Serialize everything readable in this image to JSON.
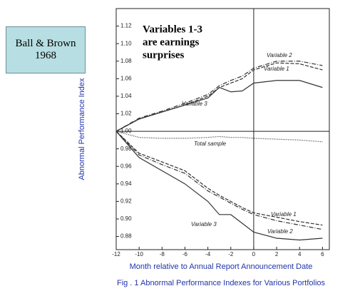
{
  "header": {
    "lines": [
      "Ball & Brown",
      "1968"
    ]
  },
  "chart_data": {
    "type": "line",
    "annotation": [
      "Variables 1-3",
      "are earnings",
      "surprises"
    ],
    "y_label": "Abnormal Performance Index",
    "x_label": "Month relative to Annual Report Announcement Date",
    "caption": "Fig . 1 Abnormal Performance Indexes for Various Portfolios",
    "x": [
      -12,
      -10,
      -8,
      -6,
      -4,
      -3,
      -2,
      -1,
      0,
      2,
      4,
      6
    ],
    "series": [
      {
        "name": "Variable 2",
        "color": "#333",
        "style": "dashdot",
        "values": [
          1.0,
          1.015,
          1.023,
          1.032,
          1.042,
          1.052,
          1.058,
          1.063,
          1.072,
          1.08,
          1.08,
          1.075
        ]
      },
      {
        "name": "Variable 1",
        "color": "#333",
        "style": "dashed",
        "values": [
          1.0,
          1.014,
          1.022,
          1.03,
          1.04,
          1.05,
          1.055,
          1.06,
          1.07,
          1.078,
          1.077,
          1.07
        ]
      },
      {
        "name": "Variable 3",
        "color": "#333",
        "style": "solid",
        "values": [
          1.0,
          1.014,
          1.022,
          1.03,
          1.038,
          1.05,
          1.045,
          1.046,
          1.055,
          1.058,
          1.058,
          1.05
        ]
      },
      {
        "name": "Total sample",
        "color": "#333",
        "style": "dotted",
        "values": [
          1.0,
          0.993,
          0.992,
          0.992,
          0.993,
          0.994,
          0.993,
          0.993,
          0.992,
          0.991,
          0.99,
          0.988
        ]
      },
      {
        "name": "Variable 1",
        "color": "#333",
        "style": "dashed",
        "values": [
          1.0,
          0.975,
          0.965,
          0.955,
          0.935,
          0.927,
          0.92,
          0.913,
          0.907,
          0.902,
          0.897,
          0.893
        ]
      },
      {
        "name": "Variable 2",
        "color": "#333",
        "style": "dashdot",
        "values": [
          1.0,
          0.973,
          0.962,
          0.952,
          0.932,
          0.925,
          0.918,
          0.911,
          0.905,
          0.898,
          0.893,
          0.888
        ]
      },
      {
        "name": "Variable 3",
        "color": "#333",
        "style": "solid",
        "values": [
          1.0,
          0.97,
          0.955,
          0.94,
          0.92,
          0.905,
          0.905,
          0.895,
          0.885,
          0.878,
          0.876,
          0.878
        ]
      }
    ],
    "xlim": [
      -12,
      6.6
    ],
    "ylim": [
      0.865,
      1.14
    ],
    "xticks": [
      -12,
      -10,
      -8,
      -6,
      -4,
      -2,
      0,
      2,
      4,
      6
    ],
    "yticks": [
      {
        "value": 0.88,
        "label": "0.88"
      },
      {
        "value": 0.9,
        "label": "0.90"
      },
      {
        "value": 0.92,
        "label": "0.92"
      },
      {
        "value": 0.94,
        "label": "0.94"
      },
      {
        "value": 0.96,
        "label": "0.96"
      },
      {
        "value": 0.98,
        "label": "0.98"
      },
      {
        "value": 1.0,
        "label": "1.00"
      },
      {
        "value": 1.02,
        "label": "1.02"
      },
      {
        "value": 1.04,
        "label": "1.04"
      },
      {
        "value": 1.06,
        "label": "1.06"
      },
      {
        "value": 1.08,
        "label": "1.08"
      },
      {
        "value": 1.1,
        "label": "1.10"
      },
      {
        "value": 1.12,
        "label": "1.12"
      }
    ],
    "reference_lines": {
      "x": 0,
      "y": 1.0
    }
  }
}
